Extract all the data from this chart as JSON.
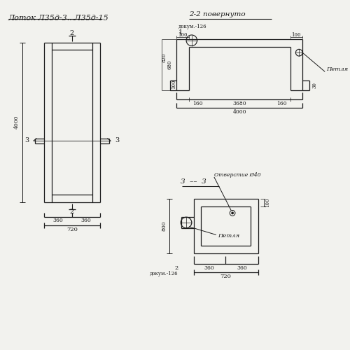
{
  "title": "Лоток Л35д-3...Л35д-15",
  "bg_color": "#f2f2ee",
  "line_color": "#1a1a1a",
  "section22_title": "2-2 повернуто",
  "section33_title": "3  ––  3",
  "annotation_hole": "Отверстие Ø40",
  "annotation_loop": "Петля",
  "doc126": "докум.-126"
}
